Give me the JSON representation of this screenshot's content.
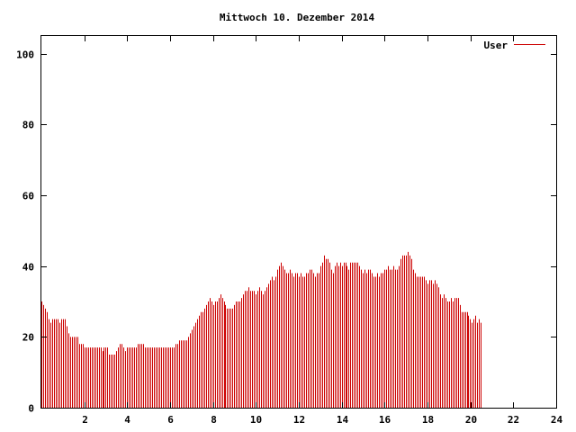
{
  "chart_data": {
    "type": "bar",
    "title": "Mittwoch 10. Dezember 2014",
    "xlabel": "",
    "ylabel": "",
    "xlim": [
      0,
      24
    ],
    "ylim": [
      0,
      105
    ],
    "x_ticks": [
      2,
      4,
      6,
      8,
      10,
      12,
      14,
      16,
      18,
      20,
      22,
      24
    ],
    "x_tick_labels": [
      "2",
      "4",
      "6",
      "8",
      "10",
      "12",
      "14",
      "16",
      "18",
      "20",
      "22",
      "24"
    ],
    "y_ticks": [
      0,
      20,
      40,
      60,
      80,
      100
    ],
    "y_tick_labels": [
      "0",
      "20",
      "40",
      "60",
      "80",
      "100"
    ],
    "grid": false,
    "legend_position": "top-right",
    "series": [
      {
        "name": "User",
        "color": "#cc0000",
        "step_hours": 0.0833,
        "values": [
          30,
          29,
          28,
          27,
          25,
          24,
          25,
          25,
          25,
          25,
          24,
          25,
          25,
          25,
          23,
          21,
          20,
          20,
          20,
          20,
          20,
          18,
          18,
          18,
          17,
          17,
          17,
          17,
          17,
          17,
          17,
          17,
          17,
          17,
          16,
          17,
          17,
          17,
          15,
          15,
          15,
          15,
          16,
          17,
          18,
          18,
          17,
          16,
          17,
          17,
          17,
          17,
          17,
          17,
          18,
          18,
          18,
          18,
          17,
          17,
          17,
          17,
          17,
          17,
          17,
          17,
          17,
          17,
          17,
          17,
          17,
          17,
          17,
          17,
          17,
          18,
          18,
          19,
          19,
          19,
          19,
          19,
          20,
          21,
          22,
          23,
          24,
          25,
          26,
          27,
          27,
          28,
          29,
          30,
          31,
          30,
          29,
          30,
          30,
          31,
          32,
          31,
          30,
          29,
          28,
          28,
          28,
          28,
          29,
          30,
          30,
          30,
          31,
          32,
          33,
          33,
          34,
          33,
          33,
          33,
          32,
          33,
          34,
          33,
          32,
          33,
          34,
          35,
          36,
          37,
          36,
          37,
          39,
          40,
          41,
          40,
          39,
          38,
          38,
          39,
          38,
          37,
          38,
          38,
          37,
          38,
          37,
          37,
          38,
          38,
          39,
          39,
          38,
          37,
          38,
          38,
          40,
          41,
          43,
          42,
          42,
          41,
          39,
          38,
          40,
          41,
          40,
          41,
          40,
          41,
          41,
          40,
          39,
          41,
          41,
          41,
          41,
          41,
          40,
          39,
          38,
          39,
          38,
          39,
          39,
          38,
          37,
          37,
          38,
          37,
          38,
          38,
          39,
          39,
          40,
          39,
          39,
          40,
          39,
          39,
          40,
          42,
          43,
          43,
          43,
          44,
          43,
          42,
          39,
          38,
          37,
          37,
          37,
          37,
          37,
          36,
          35,
          36,
          36,
          35,
          36,
          35,
          34,
          32,
          31,
          32,
          31,
          30,
          30,
          31,
          30,
          31,
          31,
          31,
          29,
          27,
          27,
          27,
          27,
          26,
          25,
          24,
          25,
          26,
          24,
          25,
          24
        ]
      }
    ]
  }
}
